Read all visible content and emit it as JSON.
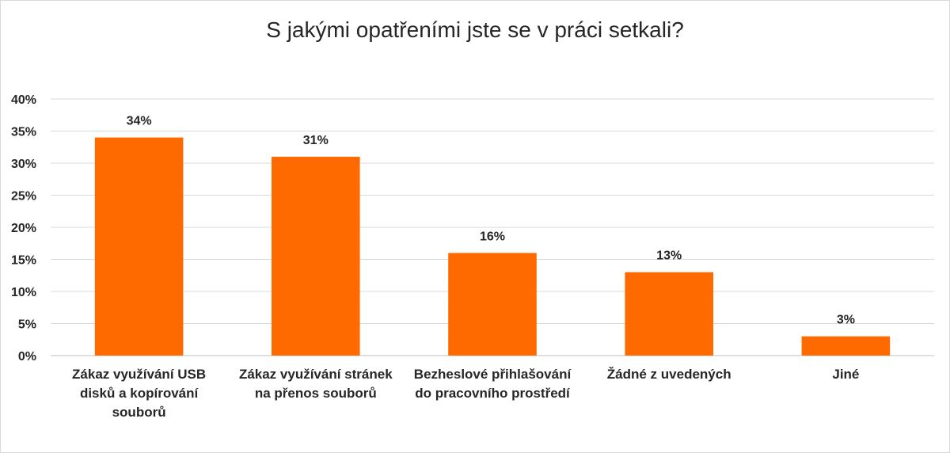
{
  "chart_data": {
    "type": "bar",
    "title": "S jakými opatřeními jste se v práci setkali?",
    "categories": [
      "Zákaz využívání USB disků a kopírování souborů",
      "Zákaz využívání stránek na přenos souborů",
      "Bezheslové přihlašování do pracovního prostředí",
      "Žádné z uvedených",
      "Jiné"
    ],
    "values": [
      34,
      31,
      16,
      13,
      3
    ],
    "data_labels": [
      "34%",
      "31%",
      "16%",
      "13%",
      "3%"
    ],
    "ylim": [
      0,
      40
    ],
    "yticks": [
      0,
      5,
      10,
      15,
      20,
      25,
      30,
      35,
      40
    ],
    "ytick_labels": [
      "0%",
      "5%",
      "10%",
      "15%",
      "20%",
      "25%",
      "30%",
      "35%",
      "40%"
    ],
    "grid": true,
    "legend": "none",
    "bar_color": "#ff6a00"
  }
}
